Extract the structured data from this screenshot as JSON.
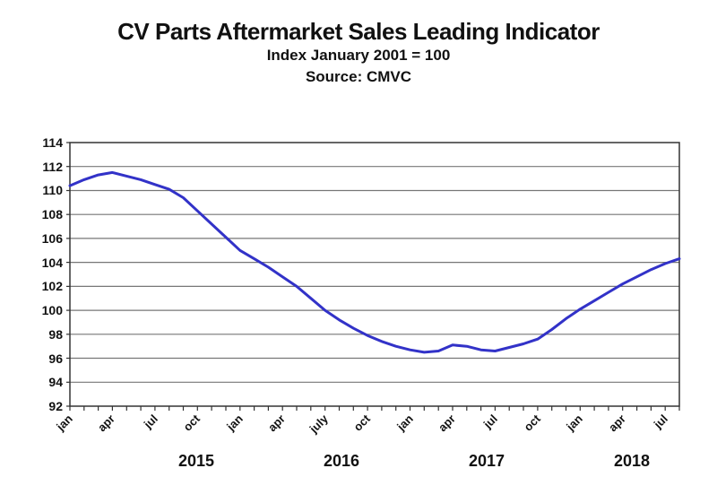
{
  "header": {
    "title": "CV Parts Aftermarket Sales Leading Indicator",
    "subtitle": "Index January 2001 = 100",
    "source": "Source: CMVC"
  },
  "chart_data": {
    "type": "line",
    "title": "CV Parts Aftermarket Sales Leading Indicator",
    "subtitle": "Index January 2001 = 100",
    "source": "Source: CMVC",
    "legend": "none",
    "grid": true,
    "ylim": [
      92,
      114
    ],
    "yticks": [
      92,
      94,
      96,
      98,
      100,
      102,
      104,
      106,
      108,
      110,
      112,
      114
    ],
    "x": [
      "2015-01",
      "2015-02",
      "2015-03",
      "2015-04",
      "2015-05",
      "2015-06",
      "2015-07",
      "2015-08",
      "2015-09",
      "2015-10",
      "2015-11",
      "2015-12",
      "2016-01",
      "2016-02",
      "2016-03",
      "2016-04",
      "2016-05",
      "2016-06",
      "2016-07",
      "2016-08",
      "2016-09",
      "2016-10",
      "2016-11",
      "2016-12",
      "2017-01",
      "2017-02",
      "2017-03",
      "2017-04",
      "2017-05",
      "2017-06",
      "2017-07",
      "2017-08",
      "2017-09",
      "2017-10",
      "2017-11",
      "2017-12",
      "2018-01",
      "2018-02",
      "2018-03",
      "2018-04",
      "2018-05",
      "2018-06",
      "2018-07",
      "2018-08"
    ],
    "series": [
      {
        "name": "CV Parts Aftermarket Sales Leading Indicator (Index Jan 2001 = 100)",
        "values": [
          110.4,
          110.9,
          111.3,
          111.5,
          111.2,
          110.9,
          110.5,
          110.1,
          109.4,
          108.3,
          107.2,
          106.1,
          105.0,
          104.3,
          103.6,
          102.8,
          102.0,
          101.0,
          100.0,
          99.2,
          98.5,
          97.9,
          97.4,
          97.0,
          96.7,
          96.5,
          96.6,
          97.1,
          97.0,
          96.7,
          96.6,
          96.9,
          97.2,
          97.6,
          98.4,
          99.3,
          100.1,
          100.8,
          101.5,
          102.2,
          102.8,
          103.4,
          103.9,
          104.3
        ]
      }
    ],
    "xtick_labels": [
      "jan",
      "apr",
      "jul",
      "oct",
      "jan",
      "apr",
      "july",
      "oct",
      "jan",
      "apr",
      "jul",
      "oct",
      "jan",
      "apr",
      "jul"
    ],
    "xtick_month_indices": [
      0,
      3,
      6,
      9,
      12,
      15,
      18,
      21,
      24,
      27,
      30,
      33,
      36,
      39,
      42
    ],
    "year_labels": [
      "2015",
      "2016",
      "2017",
      "2018"
    ],
    "year_positions": [
      0.207,
      0.446,
      0.684,
      0.922
    ],
    "line_color": "#3232c8",
    "grid_color": "#777777",
    "axis_color": "#333333",
    "text_color": "#111111"
  }
}
